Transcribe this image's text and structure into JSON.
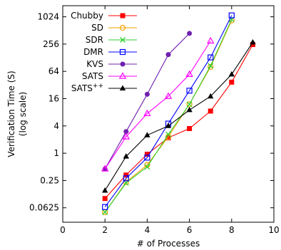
{
  "chart_data": {
    "type": "line",
    "xlabel": "# of Processes",
    "ylabel": "Verification Time (S)",
    "ylabel_sub": "(log scale)",
    "xlim": [
      0,
      10
    ],
    "ylim": [
      0.03,
      1800
    ],
    "yscale": "log2",
    "x_ticks": [
      0,
      2,
      4,
      6,
      8,
      10
    ],
    "x_tick_labels": [
      "0",
      "2",
      "4",
      "6",
      "8",
      "10"
    ],
    "y_ticks": [
      0.0625,
      0.25,
      1,
      4,
      16,
      64,
      256,
      1024
    ],
    "y_tick_labels": [
      "0.0625",
      "0.25",
      "1",
      "4",
      "16",
      "64",
      "256",
      "1024"
    ],
    "grid": false,
    "legend": "top-left",
    "series": [
      {
        "name": "Chubby",
        "color": "#ff0000",
        "marker": "square-filled",
        "x": [
          2,
          3,
          4,
          5,
          6,
          7,
          8,
          9
        ],
        "values": [
          0.1,
          0.33,
          0.95,
          2.2,
          3.5,
          8.5,
          37,
          250
        ]
      },
      {
        "name": "SD",
        "color": "#f0a000",
        "marker": "circle-open",
        "x": [
          2,
          3,
          4,
          5,
          6,
          7,
          8
        ],
        "values": [
          0.05,
          0.23,
          0.55,
          2.3,
          12,
          80,
          850
        ]
      },
      {
        "name": "SDR",
        "color": "#30d030",
        "marker": "cross",
        "x": [
          2,
          3,
          4,
          5,
          6,
          7,
          8
        ],
        "values": [
          0.05,
          0.22,
          0.5,
          2.6,
          12,
          85,
          900
        ]
      },
      {
        "name": "DMR",
        "color": "#0000ff",
        "marker": "square-open",
        "x": [
          2,
          3,
          4,
          5,
          6,
          7,
          8
        ],
        "values": [
          0.065,
          0.28,
          0.8,
          4.5,
          24,
          130,
          1100
        ]
      },
      {
        "name": "KVS",
        "color": "#7020b0",
        "marker": "circle-filled",
        "x": [
          2,
          3,
          4,
          5,
          6
        ],
        "values": [
          0.45,
          3,
          20,
          150,
          440
        ]
      },
      {
        "name": "SATS",
        "color": "#ff00ff",
        "marker": "triangle-open",
        "x": [
          2,
          3,
          4,
          5,
          6,
          7
        ],
        "values": [
          0.45,
          2.3,
          7.5,
          18,
          55,
          300
        ]
      },
      {
        "name": "SATS",
        "name_sup": "++",
        "color": "#000000",
        "marker": "triangle-filled",
        "x": [
          2,
          3,
          4,
          5,
          6,
          7,
          8,
          9
        ],
        "values": [
          0.15,
          0.85,
          2.5,
          4,
          9,
          18,
          55,
          280
        ]
      }
    ]
  }
}
